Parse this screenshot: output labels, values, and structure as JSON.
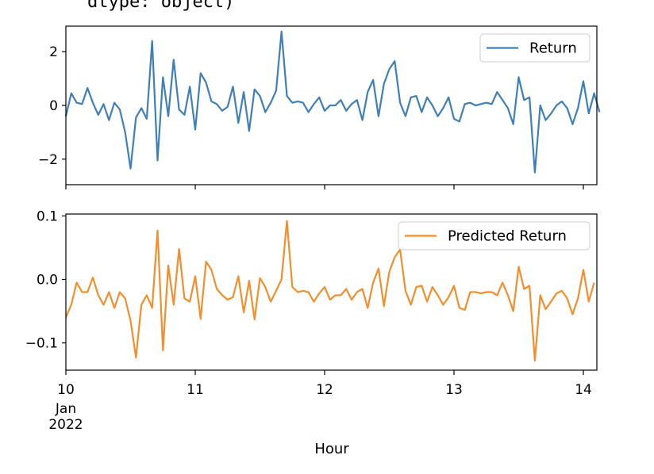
{
  "output_text": "dtype: object)",
  "chart_data": [
    {
      "type": "line",
      "series": [
        {
          "name": "Return",
          "color": "#3f7fb8",
          "values": [
            -0.4,
            0.45,
            0.1,
            0.05,
            0.65,
            0.1,
            -0.35,
            0.05,
            -0.55,
            0.1,
            -0.15,
            -1,
            -2.35,
            -0.45,
            -0.1,
            -0.5,
            2.4,
            -2.05,
            1.05,
            -0.4,
            1.7,
            -0.15,
            -0.35,
            0.7,
            -0.9,
            1.2,
            0.85,
            0.15,
            0.05,
            -0.2,
            -0.05,
            0.7,
            -0.65,
            0.5,
            -0.95,
            0.6,
            0.35,
            -0.25,
            0.1,
            0.55,
            2.75,
            0.35,
            0.1,
            0.15,
            0.1,
            -0.25,
            0.05,
            0.3,
            -0.2,
            0,
            0,
            0.2,
            -0.2,
            0.05,
            0.2,
            -0.55,
            0.5,
            0.95,
            -0.4,
            0.8,
            1.35,
            1.65,
            0.1,
            -0.4,
            0.3,
            0.35,
            -0.25,
            0.3,
            0,
            -0.4,
            -0.1,
            0.3,
            -0.5,
            -0.6,
            0.05,
            0.1,
            0,
            0.05,
            0.1,
            0.05,
            0.5,
            0.2,
            -0.1,
            -0.7,
            1.05,
            0.2,
            0.3,
            -2.5,
            0,
            -0.55,
            -0.3,
            0,
            0.15,
            -0.1,
            -0.7,
            -0.1,
            0.9,
            -0.3,
            0.45,
            -0.25
          ]
        }
      ],
      "yticks": [
        2,
        0,
        -2
      ],
      "ytick_labels": [
        "2",
        "0",
        "−2"
      ],
      "ylim": [
        -2.95,
        2.95
      ],
      "legend_position": "upper right"
    },
    {
      "type": "line",
      "series": [
        {
          "name": "Predicted Return",
          "color": "#f28e2b",
          "values": [
            -0.06,
            -0.04,
            -0.005,
            -0.02,
            -0.02,
            0.003,
            -0.025,
            -0.04,
            -0.02,
            -0.045,
            -0.02,
            -0.03,
            -0.065,
            -0.123,
            -0.04,
            -0.025,
            -0.045,
            0.077,
            -0.112,
            0.022,
            -0.04,
            0.048,
            -0.03,
            -0.035,
            0.005,
            -0.062,
            0.028,
            0.015,
            -0.015,
            -0.025,
            -0.032,
            -0.028,
            0.005,
            -0.052,
            -0.002,
            -0.063,
            0.002,
            -0.012,
            -0.035,
            -0.018,
            0,
            0.092,
            -0.012,
            -0.02,
            -0.018,
            -0.02,
            -0.035,
            -0.022,
            -0.012,
            -0.032,
            -0.025,
            -0.025,
            -0.015,
            -0.032,
            -0.02,
            -0.015,
            -0.045,
            -0.005,
            0.017,
            -0.042,
            0.012,
            0.035,
            0.047,
            -0.018,
            -0.04,
            -0.012,
            -0.01,
            -0.035,
            -0.012,
            -0.025,
            -0.04,
            -0.028,
            -0.01,
            -0.045,
            -0.048,
            -0.02,
            -0.02,
            -0.022,
            -0.02,
            -0.02,
            -0.025,
            -0.005,
            -0.025,
            -0.05,
            0.02,
            -0.015,
            -0.01,
            -0.128,
            -0.025,
            -0.047,
            -0.035,
            -0.022,
            -0.018,
            -0.03,
            -0.055,
            -0.03,
            0.015,
            -0.035,
            -0.005
          ]
        }
      ],
      "yticks": [
        0.1,
        0.0,
        -0.1
      ],
      "ytick_labels": [
        "0.1",
        "0.0",
        "−0.1"
      ],
      "ylim": [
        -0.143,
        0.103
      ],
      "legend_position": "upper right"
    }
  ],
  "x_axis": {
    "ticks": [
      {
        "x": 0,
        "label": "10"
      },
      {
        "x": 24,
        "label": "11"
      },
      {
        "x": 48,
        "label": "12"
      },
      {
        "x": 72,
        "label": "13"
      },
      {
        "x": 96,
        "label": "14"
      }
    ],
    "first_tick_sublabels": [
      "Jan",
      "2022"
    ],
    "xlim": [
      0,
      98.5
    ],
    "xlabel": "Hour"
  }
}
